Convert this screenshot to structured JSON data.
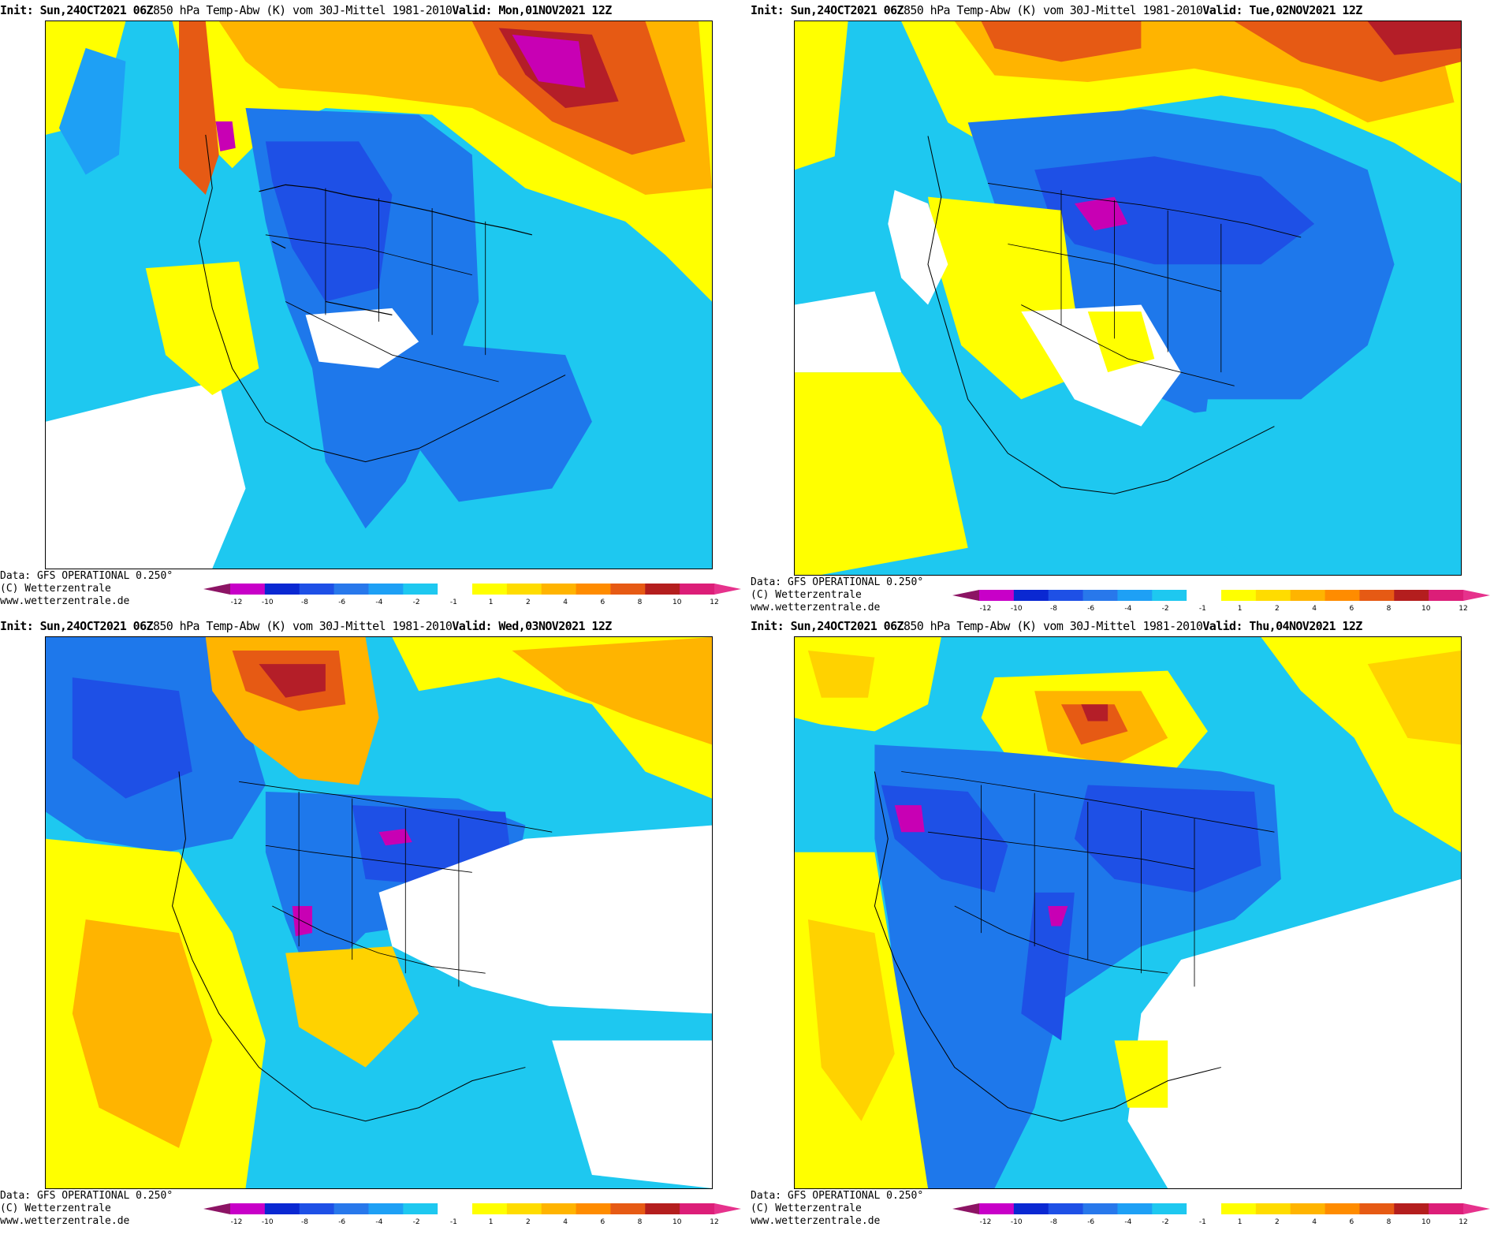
{
  "header": {
    "init_label": "Init:",
    "init_date": "Sun,24OCT2021",
    "init_hour": "06Z",
    "variable": "850 hPa Temp-Abw (K) vom 30J-Mittel 1981-2010",
    "valid_label": "Valid:"
  },
  "credits": {
    "data_line": "Data: GFS OPERATIONAL 0.250°",
    "copyright_line": "(C) Wetterzentrale",
    "url_line": "www.wetterzentrale.de"
  },
  "panels": [
    {
      "valid_date": "Mon,01NOV2021",
      "valid_hour": "12Z"
    },
    {
      "valid_date": "Tue,02NOV2021",
      "valid_hour": "12Z"
    },
    {
      "valid_date": "Wed,03NOV2021",
      "valid_hour": "12Z"
    },
    {
      "valid_date": "Thu,04NOV2021",
      "valid_hour": "12Z"
    }
  ],
  "legend": {
    "ticks": [
      "-12",
      "-10",
      "-8",
      "-6",
      "-4",
      "-2",
      "-1",
      "1",
      "2",
      "4",
      "6",
      "8",
      "10",
      "12"
    ],
    "colors": [
      "#c800c8",
      "#0a28d2",
      "#1e50e6",
      "#2878eb",
      "#1ea0f5",
      "#1ec8f0",
      "#ffffff",
      "#ffff00",
      "#ffdc00",
      "#ffb400",
      "#ff8c00",
      "#e65a14",
      "#b41e1e",
      "#dc1e78"
    ],
    "low_arrow_color": "#8c1464",
    "high_arrow_color": "#e6328c"
  },
  "palette": {
    "yellow": "#ffff00",
    "gold": "#ffd200",
    "orange": "#ffa500",
    "dark_orange": "#e66414",
    "red": "#b41e28",
    "magenta": "#c800b4",
    "cyan": "#00e6f0",
    "light_blue": "#1eb4f5",
    "blue": "#1e78eb",
    "dark_blue": "#1e50e6",
    "deep_blue": "#0a28c8",
    "white": "#ffffff",
    "border_line": "#000000"
  }
}
